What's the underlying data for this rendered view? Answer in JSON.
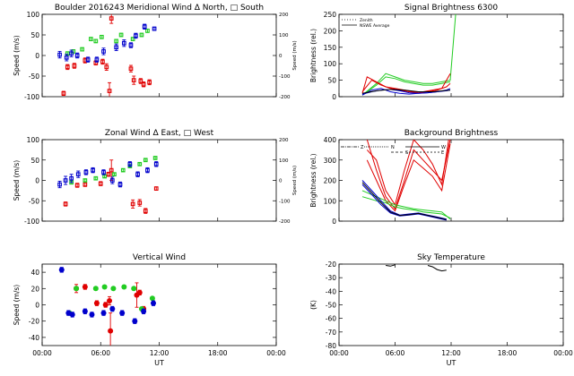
{
  "colors": {
    "red": "#e00000",
    "green": "#22cc22",
    "blue": "#0000cc",
    "black": "#000000"
  },
  "chart_data": [
    {
      "id": "meridional",
      "type": "scatter",
      "title": "Boulder   2016243    Meridional Wind   ∆ North, □ South",
      "xlabel": "",
      "ylabel": "Speed (m/s)",
      "y2label": "Speed (m/s)",
      "xlim": [
        0,
        24
      ],
      "ylim": [
        -100,
        100
      ],
      "y2lim": [
        -200,
        200
      ],
      "xticks": [
        0,
        6,
        12,
        18,
        24
      ],
      "xticklabels": [
        "",
        "",
        "",
        "",
        ""
      ],
      "yticks": [
        -100,
        -50,
        0,
        50,
        100
      ],
      "yticklabels": [
        "-100",
        "-50",
        "0",
        "50",
        "100"
      ],
      "y2ticks": [
        -200,
        -100,
        0,
        100,
        200
      ],
      "y2ticklabels": [
        "-200",
        "-100",
        "0",
        "100",
        "200"
      ],
      "series": [
        {
          "color": "red",
          "marker": "square",
          "x": [
            2.2,
            2.6,
            3.3,
            4.4,
            5.5,
            6.2,
            6.6,
            6.9,
            7.1,
            9.1,
            9.4,
            10.1,
            10.4,
            11.0
          ],
          "y": [
            -92,
            -28,
            -25,
            -12,
            -18,
            -15,
            -28,
            -86,
            90,
            -32,
            -60,
            -62,
            -70,
            -65
          ],
          "err": [
            5,
            6,
            6,
            6,
            5,
            6,
            8,
            20,
            12,
            8,
            10,
            6,
            6,
            6
          ]
        },
        {
          "color": "green",
          "marker": "square",
          "x": [
            2.6,
            3.2,
            4.1,
            5.0,
            5.5,
            6.1,
            7.6,
            8.1,
            9.3,
            10.2,
            10.8
          ],
          "y": [
            5,
            10,
            15,
            40,
            35,
            45,
            35,
            50,
            40,
            50,
            60
          ],
          "err": [
            4,
            4,
            4,
            4,
            4,
            4,
            4,
            4,
            4,
            4,
            4
          ]
        },
        {
          "color": "blue",
          "marker": "square",
          "x": [
            1.8,
            2.5,
            3.0,
            3.6,
            4.7,
            5.6,
            6.3,
            7.6,
            8.4,
            9.1,
            9.6,
            10.5,
            11.5
          ],
          "y": [
            2,
            -5,
            5,
            0,
            -10,
            -10,
            10,
            20,
            30,
            25,
            48,
            70,
            65
          ],
          "err": [
            8,
            8,
            8,
            6,
            6,
            6,
            8,
            8,
            8,
            6,
            6,
            6,
            4
          ]
        }
      ]
    },
    {
      "id": "zonal",
      "type": "scatter",
      "title": "Zonal Wind      ∆ East, □ West",
      "xlabel": "",
      "ylabel": "Speed (m/s)",
      "y2label": "Speed (m/s)",
      "xlim": [
        0,
        24
      ],
      "ylim": [
        -100,
        100
      ],
      "y2lim": [
        -200,
        200
      ],
      "xticks": [
        0,
        6,
        12,
        18,
        24
      ],
      "xticklabels": [
        "",
        "",
        "",
        "",
        ""
      ],
      "yticks": [
        -100,
        -50,
        0,
        50,
        100
      ],
      "yticklabels": [
        "-100",
        "-50",
        "0",
        "50",
        "100"
      ],
      "y2ticks": [
        -200,
        -100,
        0,
        100,
        200
      ],
      "y2ticklabels": [
        "-200",
        "-100",
        "0",
        "100",
        "200"
      ],
      "series": [
        {
          "color": "red",
          "marker": "square",
          "x": [
            2.4,
            3.6,
            4.4,
            6.0,
            6.8,
            7.1,
            9.3,
            10.0,
            10.6,
            11.7
          ],
          "y": [
            -58,
            -12,
            -10,
            -8,
            15,
            25,
            -58,
            -55,
            -75,
            -20
          ],
          "err": [
            5,
            5,
            5,
            5,
            5,
            25,
            10,
            8,
            6,
            4
          ]
        },
        {
          "color": "green",
          "marker": "square",
          "x": [
            3.0,
            4.4,
            5.5,
            6.4,
            7.4,
            8.3,
            9.0,
            10.0,
            10.6,
            11.6
          ],
          "y": [
            -5,
            0,
            5,
            10,
            15,
            25,
            35,
            40,
            50,
            55
          ],
          "err": [
            3,
            3,
            3,
            3,
            3,
            3,
            3,
            3,
            3,
            3
          ]
        },
        {
          "color": "blue",
          "marker": "square",
          "x": [
            1.8,
            2.4,
            3.0,
            3.7,
            4.5,
            5.2,
            6.3,
            7.2,
            8.0,
            9.0,
            9.8,
            10.8,
            11.7
          ],
          "y": [
            -10,
            0,
            5,
            15,
            20,
            25,
            20,
            0,
            -10,
            40,
            15,
            25,
            40
          ],
          "err": [
            8,
            10,
            10,
            8,
            6,
            6,
            6,
            8,
            6,
            6,
            6,
            6,
            6
          ]
        }
      ]
    },
    {
      "id": "vertical",
      "type": "scatter",
      "title": "Vertical Wind",
      "xlabel": "UT",
      "ylabel": "Speed (m/s)",
      "xlim": [
        0,
        24
      ],
      "ylim": [
        -50,
        50
      ],
      "xticks": [
        0,
        6,
        12,
        18,
        24
      ],
      "xticklabels": [
        "00:00",
        "06:00",
        "12:00",
        "18:00",
        "00:00"
      ],
      "yticks": [
        -40,
        -20,
        0,
        20,
        40
      ],
      "yticklabels": [
        "-40",
        "-20",
        "0",
        "20",
        "40"
      ],
      "series": [
        {
          "color": "red",
          "marker": "circle",
          "x": [
            3.5,
            4.4,
            5.6,
            6.5,
            6.9,
            7.0,
            9.7,
            10.0,
            10.4
          ],
          "y": [
            20,
            22,
            2,
            0,
            5,
            -32,
            12,
            15,
            -5
          ],
          "err": [
            5,
            3,
            3,
            3,
            5,
            22,
            15,
            3,
            3
          ]
        },
        {
          "color": "green",
          "marker": "circle",
          "x": [
            2.8,
            3.5,
            5.5,
            6.4,
            7.3,
            8.4,
            9.4,
            10.2,
            11.3
          ],
          "y": [
            -10,
            20,
            20,
            22,
            20,
            22,
            20,
            -5,
            8
          ],
          "err": [
            2,
            2,
            2,
            2,
            2,
            2,
            2,
            2,
            2
          ]
        },
        {
          "color": "blue",
          "marker": "circle",
          "x": [
            2.0,
            2.7,
            3.1,
            4.4,
            5.1,
            6.3,
            7.2,
            8.2,
            9.5,
            10.4,
            11.4
          ],
          "y": [
            43,
            -10,
            -12,
            -8,
            -12,
            -10,
            -5,
            -10,
            -20,
            -8,
            2
          ],
          "err": [
            3,
            3,
            3,
            3,
            3,
            3,
            3,
            3,
            3,
            3,
            3
          ]
        }
      ]
    },
    {
      "id": "signal",
      "type": "line",
      "title": "Signal Brightness        6300",
      "xlabel": "",
      "ylabel": "Brightness (rel.)",
      "xlim": [
        0,
        24
      ],
      "ylim": [
        0,
        250
      ],
      "xticks": [
        0,
        6,
        12,
        18,
        24
      ],
      "xticklabels": [
        "",
        "",
        "",
        "",
        ""
      ],
      "yticks": [
        0,
        50,
        100,
        150,
        200,
        250
      ],
      "yticklabels": [
        "0",
        "50",
        "100",
        "150",
        "200",
        "250"
      ],
      "legend": [
        {
          "label": "Zenith",
          "style": "dotted"
        },
        {
          "label": "NSWE Average",
          "style": "solid"
        }
      ],
      "series": [
        {
          "color": "green",
          "x": [
            2.5,
            4,
            5,
            6,
            7,
            8,
            9,
            10,
            11,
            11.9,
            12.5
          ],
          "y": [
            5,
            40,
            70,
            60,
            50,
            45,
            40,
            40,
            45,
            50,
            255
          ]
        },
        {
          "color": "green",
          "x": [
            2.5,
            4,
            5,
            6,
            7,
            8,
            9,
            10,
            11,
            11.9
          ],
          "y": [
            5,
            35,
            60,
            55,
            45,
            40,
            35,
            35,
            40,
            45
          ]
        },
        {
          "color": "red",
          "x": [
            2.5,
            3,
            4,
            5,
            6,
            7,
            8,
            9,
            10,
            11,
            11.9
          ],
          "y": [
            10,
            60,
            45,
            30,
            25,
            20,
            15,
            15,
            20,
            25,
            70
          ]
        },
        {
          "color": "red",
          "x": [
            2.5,
            3.5,
            4.5,
            5.5,
            6.5,
            7.5,
            8.5,
            9.5,
            10.5,
            11.5,
            11.9
          ],
          "y": [
            15,
            50,
            35,
            25,
            20,
            15,
            12,
            15,
            20,
            30,
            40
          ]
        },
        {
          "color": "blue",
          "x": [
            2.5,
            3.5,
            4.5,
            5.5,
            6.5,
            7.5,
            8.5,
            9.5,
            10.5,
            11.5,
            11.9
          ],
          "y": [
            5,
            20,
            25,
            15,
            10,
            8,
            10,
            12,
            15,
            18,
            20
          ]
        },
        {
          "color": "blue",
          "x": [
            2.5,
            3.5,
            4.5,
            5.5,
            6.5,
            7.5,
            8.5,
            9.5,
            10.5,
            11.5,
            11.9
          ],
          "y": [
            8,
            15,
            20,
            22,
            18,
            12,
            10,
            12,
            15,
            20,
            25
          ]
        },
        {
          "color": "black",
          "x": [
            2.5,
            4,
            5.5,
            7,
            8.5,
            10,
            11.9
          ],
          "y": [
            10,
            18,
            22,
            20,
            15,
            15,
            20
          ]
        }
      ]
    },
    {
      "id": "background",
      "type": "line",
      "title": "Background Brightness",
      "xlabel": "",
      "ylabel": "Brightness (rel.)",
      "xlim": [
        0,
        24
      ],
      "ylim": [
        0,
        400
      ],
      "xticks": [
        0,
        6,
        12,
        18,
        24
      ],
      "xticklabels": [
        "",
        "",
        "",
        "",
        ""
      ],
      "yticks": [
        0,
        100,
        200,
        300,
        400
      ],
      "yticklabels": [
        "0",
        "100",
        "200",
        "300",
        "400"
      ],
      "legend": [
        {
          "label": "Z"
        },
        {
          "label": "N"
        },
        {
          "label": "S"
        },
        {
          "label": "W"
        },
        {
          "label": "E"
        }
      ],
      "series": [
        {
          "color": "red",
          "x": [
            3,
            4,
            5,
            6,
            7,
            8,
            9,
            10,
            11,
            11.9
          ],
          "y": [
            400,
            250,
            120,
            60,
            200,
            350,
            300,
            250,
            200,
            400
          ]
        },
        {
          "color": "red",
          "x": [
            3,
            4,
            5,
            6,
            7,
            8,
            9,
            10,
            11,
            11.9
          ],
          "y": [
            350,
            300,
            150,
            80,
            250,
            400,
            350,
            280,
            180,
            450
          ]
        },
        {
          "color": "red",
          "x": [
            3,
            4,
            5,
            6,
            7,
            8,
            9,
            10,
            11,
            11.9
          ],
          "y": [
            300,
            200,
            100,
            50,
            180,
            300,
            260,
            220,
            150,
            380
          ]
        },
        {
          "color": "green",
          "x": [
            2.5,
            4,
            5,
            6,
            7,
            8,
            9,
            10,
            11,
            11.9
          ],
          "y": [
            150,
            120,
            100,
            80,
            70,
            60,
            55,
            50,
            45,
            10
          ]
        },
        {
          "color": "green",
          "x": [
            2.5,
            4,
            5,
            6,
            7,
            8,
            9,
            10,
            11,
            11.9
          ],
          "y": [
            120,
            100,
            90,
            70,
            60,
            55,
            45,
            40,
            35,
            15
          ]
        },
        {
          "color": "blue",
          "x": [
            2.5,
            3.5,
            4.5,
            5.5,
            6.5,
            7.5,
            8.5,
            9.5,
            10.5,
            11.5
          ],
          "y": [
            200,
            150,
            100,
            50,
            30,
            35,
            40,
            30,
            20,
            10
          ]
        },
        {
          "color": "blue",
          "x": [
            2.5,
            3.5,
            4.5,
            5.5,
            6.5,
            7.5,
            8.5,
            9.5,
            10.5,
            11.5
          ],
          "y": [
            180,
            130,
            80,
            40,
            25,
            30,
            35,
            25,
            15,
            5
          ]
        },
        {
          "color": "black",
          "x": [
            2.5,
            3.5,
            4.5,
            5.5,
            6.5,
            7.5,
            8.5,
            9.5,
            10.5,
            11.5
          ],
          "y": [
            190,
            140,
            90,
            45,
            28,
            32,
            38,
            28,
            18,
            8
          ]
        }
      ]
    },
    {
      "id": "skytemp",
      "type": "line",
      "title": "Sky Temperature",
      "xlabel": "UT",
      "ylabel": "(K)",
      "xlim": [
        0,
        24
      ],
      "ylim": [
        -80,
        -20
      ],
      "xticks": [
        0,
        6,
        12,
        18,
        24
      ],
      "xticklabels": [
        "00:00",
        "06:00",
        "12:00",
        "18:00",
        "00:00"
      ],
      "yticks": [
        -80,
        -70,
        -60,
        -50,
        -40,
        -30,
        -20
      ],
      "yticklabels": [
        "-80",
        "-70",
        "-60",
        "-50",
        "-40",
        "-30",
        "-20"
      ],
      "series": [
        {
          "color": "black",
          "x": [
            5.0,
            5.5,
            6.0
          ],
          "y": [
            -21,
            -21.5,
            -20.5
          ]
        },
        {
          "color": "black",
          "x": [
            9.5,
            10.0,
            10.5,
            11.0,
            11.5
          ],
          "y": [
            -21,
            -22,
            -24,
            -25,
            -24.5
          ]
        }
      ]
    }
  ]
}
